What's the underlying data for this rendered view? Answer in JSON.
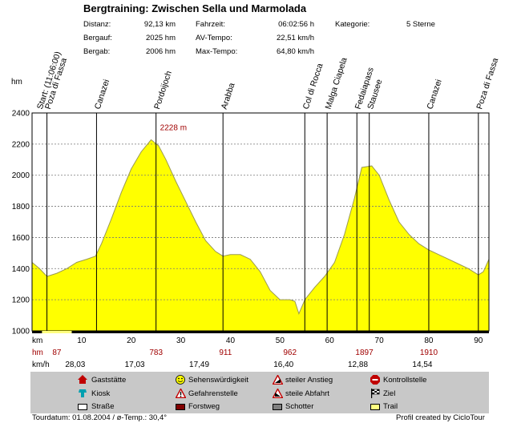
{
  "header": {
    "title": "Bergtraining: Zwischen Sella und Marmolada",
    "stats": [
      {
        "label": "Distanz:",
        "value": "92,13 km"
      },
      {
        "label": "Bergauf:",
        "value": "2025 hm"
      },
      {
        "label": "Bergab:",
        "value": "2006 hm"
      },
      {
        "label": "Fahrzeit:",
        "value": "06:02:56 h"
      },
      {
        "label": "AV-Tempo:",
        "value": "22,51 km/h"
      },
      {
        "label": "Max-Tempo:",
        "value": "64,80 km/h"
      },
      {
        "label": "Kategorie:",
        "value": "5 Sterne"
      }
    ]
  },
  "chart_data": {
    "type": "area",
    "ylabel": "hm",
    "xlabel": "km",
    "xlim": [
      0,
      92.13
    ],
    "ylim": [
      1000,
      2400
    ],
    "yticks": [
      1000,
      1200,
      1400,
      1600,
      1800,
      2000,
      2200,
      2400
    ],
    "xticks": [
      10,
      20,
      30,
      40,
      50,
      60,
      70,
      80,
      90
    ],
    "grid": true,
    "fill_color": "#ffff00",
    "profile": {
      "x": [
        0,
        1.5,
        3,
        5,
        7,
        9,
        11,
        12.8,
        14,
        16,
        18,
        20,
        22,
        24,
        25.5,
        27,
        29,
        31,
        33,
        35,
        37,
        38.5,
        40,
        42,
        44,
        46,
        48,
        50,
        52,
        53,
        53.8,
        55,
        57,
        59,
        61,
        63,
        65,
        66.5,
        68.5,
        70,
        72,
        74,
        76,
        78,
        80,
        82,
        84,
        86,
        88,
        90,
        91,
        92.13
      ],
      "y": [
        1440,
        1400,
        1350,
        1370,
        1400,
        1440,
        1460,
        1480,
        1560,
        1720,
        1890,
        2040,
        2150,
        2228,
        2190,
        2100,
        1960,
        1830,
        1700,
        1580,
        1510,
        1480,
        1490,
        1490,
        1460,
        1380,
        1260,
        1200,
        1200,
        1190,
        1110,
        1200,
        1280,
        1350,
        1440,
        1620,
        1850,
        2050,
        2060,
        2000,
        1840,
        1700,
        1620,
        1560,
        1520,
        1490,
        1460,
        1430,
        1400,
        1360,
        1380,
        1460
      ]
    },
    "peak_annotation": {
      "x": 25,
      "y": 2228,
      "label": "2228 m"
    },
    "waypoints": [
      {
        "x": 3,
        "label": "Start: (11:06:00)",
        "line": false
      },
      {
        "x": 3,
        "label": "Poza di Fassa",
        "line": true
      },
      {
        "x": 13,
        "label": "Canazei",
        "line": true
      },
      {
        "x": 25,
        "label": "Pordoijoch",
        "line": true
      },
      {
        "x": 38.5,
        "label": "Arabba",
        "line": true
      },
      {
        "x": 55,
        "label": "Col di Rocca",
        "line": true
      },
      {
        "x": 59.5,
        "label": "Malga Ciapela",
        "line": true
      },
      {
        "x": 65.5,
        "label": "Fedaiapass",
        "line": true
      },
      {
        "x": 68,
        "label": "Stausee",
        "line": true
      },
      {
        "x": 80,
        "label": "Canazei",
        "line": true
      },
      {
        "x": 90,
        "label": "Poza di Fassa",
        "line": true
      }
    ],
    "surface_bar": {
      "trail_range": [
        2,
        8
      ]
    },
    "segments": {
      "hm_label": "hm",
      "kmh_label": "km/h",
      "items": [
        {
          "hm": "87",
          "kmh": "28,03"
        },
        {
          "hm": "783",
          "kmh": "17,03"
        },
        {
          "hm": "911",
          "kmh": "17,49"
        },
        {
          "hm": "962",
          "kmh": "16,40"
        },
        {
          "hm": "1897",
          "kmh": "12,88"
        },
        {
          "hm": "1910",
          "kmh": "14,54"
        }
      ]
    }
  },
  "legend": {
    "items": [
      {
        "icon": "house-icon",
        "label": "Gaststätte"
      },
      {
        "icon": "smiley-icon",
        "label": "Sehenswürdigkeit"
      },
      {
        "icon": "steep-ascent-icon",
        "label": "steiler Anstieg"
      },
      {
        "icon": "stop-sign-icon",
        "label": "Kontrollstelle"
      },
      {
        "icon": "kiosk-icon",
        "label": "Kiosk"
      },
      {
        "icon": "warning-icon",
        "label": "Gefahrenstelle"
      },
      {
        "icon": "steep-descent-icon",
        "label": "steile Abfahrt"
      },
      {
        "icon": "finish-flag-icon",
        "label": "Ziel"
      },
      {
        "icon": "road-swatch",
        "label": "Straße",
        "color": "#ffffff"
      },
      {
        "icon": "forest-road-swatch",
        "label": "Forstweg",
        "color": "#800000"
      },
      {
        "icon": "gravel-swatch",
        "label": "Schotter",
        "color": "#808080"
      },
      {
        "icon": "trail-swatch",
        "label": "Trail",
        "color": "#ffff80"
      }
    ]
  },
  "footer": {
    "left": "Tourdatum: 01.08.2004  /  ø-Temp.: 30,4°",
    "right": "Profil created by CicloTour"
  }
}
